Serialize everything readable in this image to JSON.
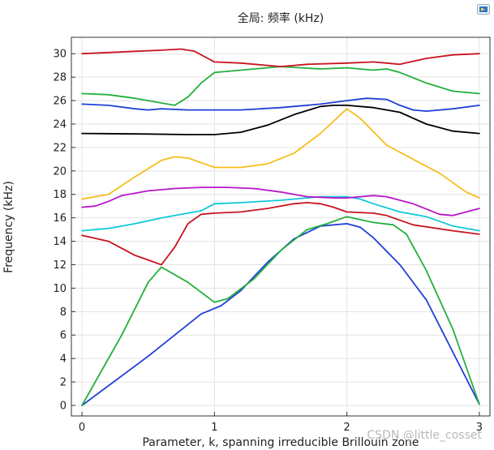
{
  "chart_data": {
    "type": "line",
    "title": "全局: 频率 (kHz)",
    "xlabel": "Parameter, k, spanning irreducible Brillouin zone",
    "ylabel": "Frequency (kHz)",
    "xlim": [
      -0.08,
      3.08
    ],
    "ylim": [
      -0.9,
      31.4
    ],
    "x_ticks": [
      0,
      1,
      2,
      3
    ],
    "y_ticks": [
      0,
      2,
      4,
      6,
      8,
      10,
      12,
      14,
      16,
      18,
      20,
      22,
      24,
      26,
      28,
      30
    ],
    "grid": true,
    "legend": "none",
    "series": [
      {
        "color": "#1f3fd6",
        "points": [
          [
            0,
            0
          ],
          [
            0.5,
            4.2
          ],
          [
            0.9,
            7.8
          ],
          [
            1.05,
            8.5
          ],
          [
            1.2,
            9.8
          ],
          [
            1.4,
            12.2
          ],
          [
            1.6,
            14.2
          ],
          [
            1.8,
            15.3
          ],
          [
            2.0,
            15.5
          ],
          [
            2.1,
            15.2
          ],
          [
            2.2,
            14.3
          ],
          [
            2.4,
            12
          ],
          [
            2.6,
            9
          ],
          [
            3,
            0.1
          ]
        ]
      },
      {
        "color": "#22b03c",
        "points": [
          [
            0,
            0
          ],
          [
            0.3,
            6
          ],
          [
            0.5,
            10.5
          ],
          [
            0.6,
            11.8
          ],
          [
            0.8,
            10.5
          ],
          [
            1.0,
            8.8
          ],
          [
            1.1,
            9.1
          ],
          [
            1.3,
            10.8
          ],
          [
            1.5,
            13.2
          ],
          [
            1.7,
            15.0
          ],
          [
            1.85,
            15.5
          ],
          [
            2.0,
            16.1
          ],
          [
            2.2,
            15.6
          ],
          [
            2.35,
            15.4
          ],
          [
            2.45,
            14.6
          ],
          [
            2.6,
            11.5
          ],
          [
            2.8,
            6.5
          ],
          [
            3,
            0.1
          ]
        ]
      },
      {
        "color": "#c8141e",
        "points": [
          [
            0,
            14.5
          ],
          [
            0.2,
            14
          ],
          [
            0.4,
            12.8
          ],
          [
            0.6,
            12
          ],
          [
            0.7,
            13.5
          ],
          [
            0.8,
            15.5
          ],
          [
            0.9,
            16.3
          ],
          [
            1.0,
            16.4
          ],
          [
            1.2,
            16.5
          ],
          [
            1.4,
            16.8
          ],
          [
            1.6,
            17.2
          ],
          [
            1.7,
            17.3
          ],
          [
            1.8,
            17.2
          ],
          [
            1.9,
            16.9
          ],
          [
            2.0,
            16.5
          ],
          [
            2.2,
            16.4
          ],
          [
            2.3,
            16.2
          ],
          [
            2.5,
            15.4
          ],
          [
            2.8,
            14.9
          ],
          [
            3,
            14.6
          ]
        ]
      },
      {
        "color": "#10c8d8",
        "points": [
          [
            0,
            14.9
          ],
          [
            0.2,
            15.1
          ],
          [
            0.4,
            15.5
          ],
          [
            0.6,
            16.0
          ],
          [
            0.8,
            16.4
          ],
          [
            0.9,
            16.6
          ],
          [
            1.0,
            17.2
          ],
          [
            1.2,
            17.3
          ],
          [
            1.5,
            17.5
          ],
          [
            1.8,
            17.8
          ],
          [
            2.0,
            17.8
          ],
          [
            2.1,
            17.6
          ],
          [
            2.2,
            17.2
          ],
          [
            2.4,
            16.5
          ],
          [
            2.6,
            16.1
          ],
          [
            2.8,
            15.3
          ],
          [
            3,
            14.9
          ]
        ]
      },
      {
        "color": "#b816c8",
        "points": [
          [
            0,
            16.9
          ],
          [
            0.1,
            17
          ],
          [
            0.2,
            17.4
          ],
          [
            0.3,
            17.9
          ],
          [
            0.5,
            18.3
          ],
          [
            0.7,
            18.5
          ],
          [
            0.9,
            18.6
          ],
          [
            1.1,
            18.6
          ],
          [
            1.3,
            18.5
          ],
          [
            1.5,
            18.2
          ],
          [
            1.7,
            17.8
          ],
          [
            1.9,
            17.7
          ],
          [
            2.0,
            17.7
          ],
          [
            2.2,
            17.9
          ],
          [
            2.3,
            17.8
          ],
          [
            2.5,
            17.2
          ],
          [
            2.7,
            16.3
          ],
          [
            2.8,
            16.2
          ],
          [
            3,
            16.8
          ]
        ]
      },
      {
        "color": "#f5be1a",
        "points": [
          [
            0,
            17.6
          ],
          [
            0.2,
            18
          ],
          [
            0.4,
            19.5
          ],
          [
            0.6,
            20.9
          ],
          [
            0.7,
            21.2
          ],
          [
            0.8,
            21.1
          ],
          [
            0.9,
            20.7
          ],
          [
            1.0,
            20.3
          ],
          [
            1.2,
            20.3
          ],
          [
            1.4,
            20.6
          ],
          [
            1.6,
            21.5
          ],
          [
            1.8,
            23.2
          ],
          [
            2.0,
            25.3
          ],
          [
            2.1,
            24.5
          ],
          [
            2.3,
            22.2
          ],
          [
            2.5,
            21.0
          ],
          [
            2.7,
            19.8
          ],
          [
            2.9,
            18.2
          ],
          [
            3,
            17.7
          ]
        ]
      },
      {
        "color": "#000000",
        "points": [
          [
            0,
            23.2
          ],
          [
            0.5,
            23.15
          ],
          [
            0.8,
            23.1
          ],
          [
            1.0,
            23.1
          ],
          [
            1.2,
            23.3
          ],
          [
            1.4,
            23.9
          ],
          [
            1.6,
            24.8
          ],
          [
            1.8,
            25.5
          ],
          [
            1.9,
            25.6
          ],
          [
            2.0,
            25.6
          ],
          [
            2.2,
            25.4
          ],
          [
            2.4,
            25.0
          ],
          [
            2.5,
            24.5
          ],
          [
            2.6,
            24.0
          ],
          [
            2.8,
            23.4
          ],
          [
            3,
            23.2
          ]
        ]
      },
      {
        "color": "#1f3fd6",
        "points": [
          [
            0,
            25.7
          ],
          [
            0.2,
            25.6
          ],
          [
            0.4,
            25.3
          ],
          [
            0.5,
            25.2
          ],
          [
            0.6,
            25.3
          ],
          [
            0.8,
            25.2
          ],
          [
            1.0,
            25.2
          ],
          [
            1.2,
            25.2
          ],
          [
            1.5,
            25.4
          ],
          [
            1.8,
            25.7
          ],
          [
            2.0,
            26
          ],
          [
            2.15,
            26.2
          ],
          [
            2.3,
            26.1
          ],
          [
            2.4,
            25.6
          ],
          [
            2.5,
            25.2
          ],
          [
            2.6,
            25.1
          ],
          [
            2.8,
            25.3
          ],
          [
            3,
            25.6
          ]
        ]
      },
      {
        "color": "#22b03c",
        "points": [
          [
            0,
            26.6
          ],
          [
            0.2,
            26.5
          ],
          [
            0.4,
            26.2
          ],
          [
            0.6,
            25.8
          ],
          [
            0.7,
            25.6
          ],
          [
            0.8,
            26.3
          ],
          [
            0.9,
            27.5
          ],
          [
            1.0,
            28.4
          ],
          [
            1.2,
            28.6
          ],
          [
            1.5,
            28.9
          ],
          [
            1.8,
            28.7
          ],
          [
            2.0,
            28.8
          ],
          [
            2.2,
            28.6
          ],
          [
            2.3,
            28.7
          ],
          [
            2.4,
            28.4
          ],
          [
            2.6,
            27.5
          ],
          [
            2.8,
            26.8
          ],
          [
            3,
            26.6
          ]
        ]
      },
      {
        "color": "#c8141e",
        "points": [
          [
            0,
            30
          ],
          [
            0.2,
            30.1
          ],
          [
            0.4,
            30.2
          ],
          [
            0.6,
            30.3
          ],
          [
            0.75,
            30.4
          ],
          [
            0.85,
            30.2
          ],
          [
            1.0,
            29.3
          ],
          [
            1.2,
            29.2
          ],
          [
            1.5,
            28.9
          ],
          [
            1.7,
            29.1
          ],
          [
            2.0,
            29.2
          ],
          [
            2.2,
            29.3
          ],
          [
            2.3,
            29.2
          ],
          [
            2.4,
            29.1
          ],
          [
            2.6,
            29.6
          ],
          [
            2.8,
            29.9
          ],
          [
            3,
            30
          ]
        ]
      }
    ]
  },
  "watermark": "CSDN @little_cosset",
  "icons": {
    "corner": "window-icon"
  },
  "colors": {
    "grid": "#e2e2e2",
    "axis": "#333333",
    "background": "#ffffff"
  }
}
